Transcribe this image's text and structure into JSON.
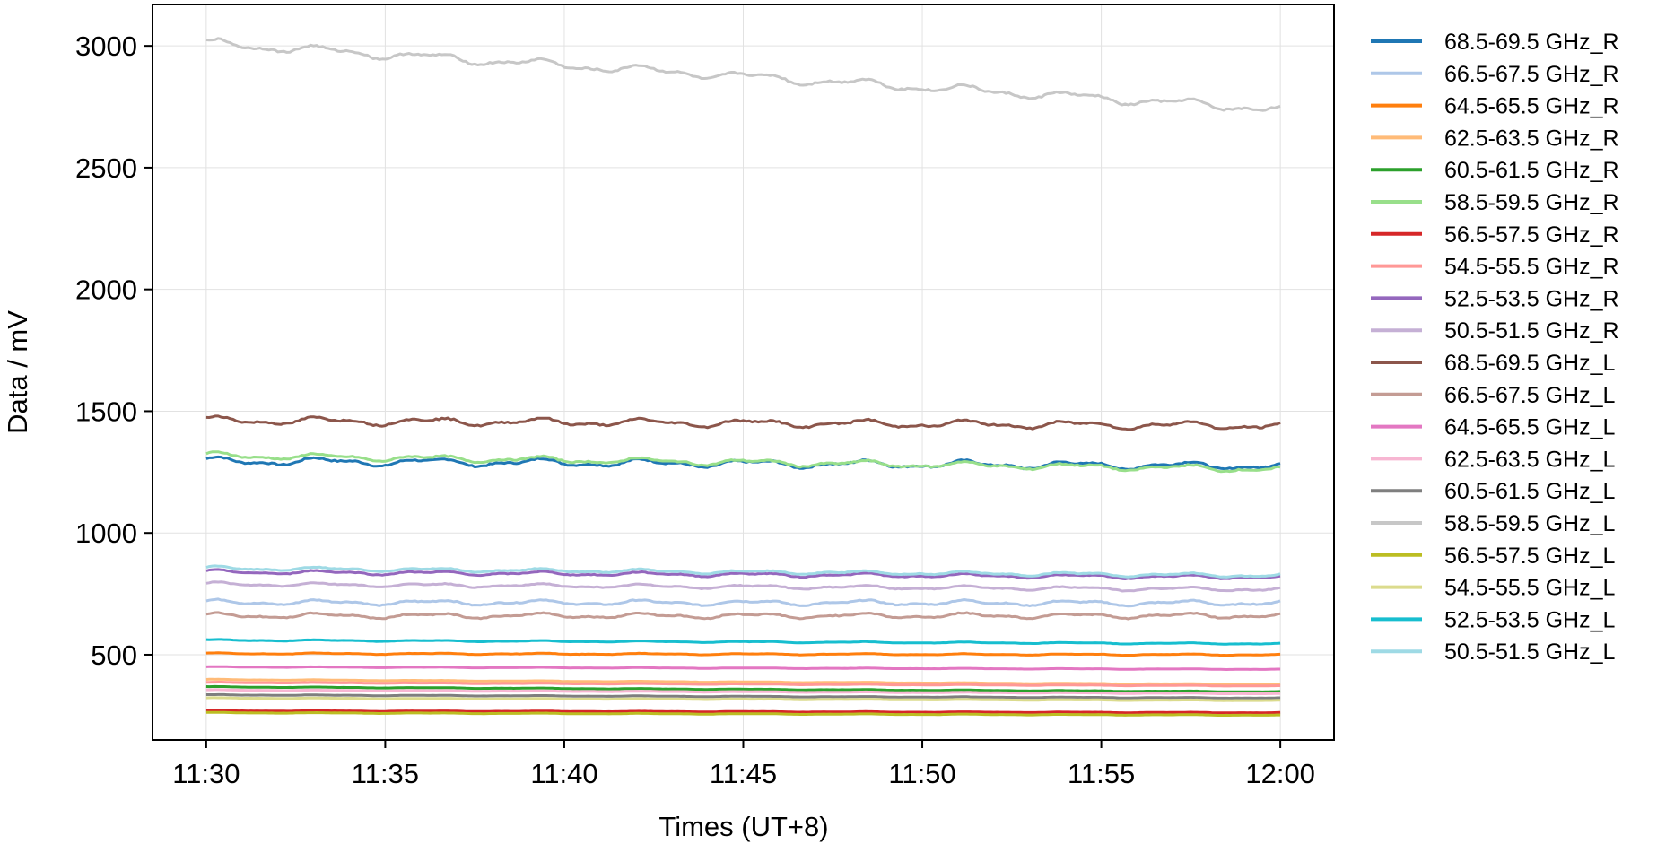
{
  "chart_data": {
    "type": "line",
    "title": "",
    "xlabel": "Times (UT+8)",
    "ylabel": "Data / mV",
    "x_range": [
      "11:30",
      "12:00"
    ],
    "xlim": [
      -1.5,
      31.5
    ],
    "ylim": [
      150,
      3170
    ],
    "x_ticks": [
      "11:30",
      "11:35",
      "11:40",
      "11:45",
      "11:50",
      "11:55",
      "12:00"
    ],
    "x_tick_values": [
      0,
      5,
      10,
      15,
      20,
      25,
      30
    ],
    "y_ticks": [
      "500",
      "1000",
      "1500",
      "2000",
      "2500",
      "3000"
    ],
    "y_tick_values": [
      500,
      1000,
      1500,
      2000,
      2500,
      3000
    ],
    "grid": true,
    "legend_position": "right, outside",
    "x_unit": "minutes after 11:30",
    "series": [
      {
        "name": "68.5-69.5 GHz_R",
        "color": "#1f77b4",
        "start": 1295,
        "end": 1275,
        "wobble": 12
      },
      {
        "name": "66.5-67.5 GHz_R",
        "color": "#aec7e8",
        "start": 715,
        "end": 712,
        "wobble": 8
      },
      {
        "name": "64.5-65.5 GHz_R",
        "color": "#ff7f0e",
        "start": 505,
        "end": 500,
        "wobble": 2
      },
      {
        "name": "62.5-63.5 GHz_R",
        "color": "#ffbb78",
        "start": 398,
        "end": 378,
        "wobble": 1
      },
      {
        "name": "60.5-61.5 GHz_R",
        "color": "#2ca02c",
        "start": 368,
        "end": 348,
        "wobble": 1
      },
      {
        "name": "58.5-59.5 GHz_R",
        "color": "#98df8a",
        "start": 1318,
        "end": 1262,
        "wobble": 10
      },
      {
        "name": "56.5-57.5 GHz_R",
        "color": "#d62728",
        "start": 270,
        "end": 262,
        "wobble": 1
      },
      {
        "name": "54.5-55.5 GHz_R",
        "color": "#ff9896",
        "start": 386,
        "end": 372,
        "wobble": 1
      },
      {
        "name": "52.5-53.5 GHz_R",
        "color": "#9467bd",
        "start": 840,
        "end": 818,
        "wobble": 6
      },
      {
        "name": "50.5-51.5 GHz_R",
        "color": "#c5b0d5",
        "start": 790,
        "end": 768,
        "wobble": 6
      },
      {
        "name": "68.5-69.5 GHz_L",
        "color": "#8c564b",
        "start": 1462,
        "end": 1440,
        "wobble": 12
      },
      {
        "name": "66.5-67.5 GHz_L",
        "color": "#c49c94",
        "start": 660,
        "end": 660,
        "wobble": 8
      },
      {
        "name": "64.5-65.5 GHz_L",
        "color": "#e377c2",
        "start": 450,
        "end": 440,
        "wobble": 1
      },
      {
        "name": "62.5-63.5 GHz_L",
        "color": "#f7b6d2",
        "start": 355,
        "end": 340,
        "wobble": 1
      },
      {
        "name": "60.5-61.5 GHz_L",
        "color": "#7f7f7f",
        "start": 335,
        "end": 322,
        "wobble": 1
      },
      {
        "name": "58.5-59.5 GHz_L",
        "color": "#c7c7c7",
        "start": 3010,
        "end": 2740,
        "wobble": 14
      },
      {
        "name": "56.5-57.5 GHz_L",
        "color": "#bcbd22",
        "start": 262,
        "end": 252,
        "wobble": 1
      },
      {
        "name": "54.5-55.5 GHz_L",
        "color": "#dbdb8d",
        "start": 322,
        "end": 312,
        "wobble": 1
      },
      {
        "name": "52.5-53.5 GHz_L",
        "color": "#17becf",
        "start": 560,
        "end": 545,
        "wobble": 2
      },
      {
        "name": "50.5-51.5 GHz_L",
        "color": "#9edae5",
        "start": 855,
        "end": 825,
        "wobble": 6
      }
    ]
  }
}
